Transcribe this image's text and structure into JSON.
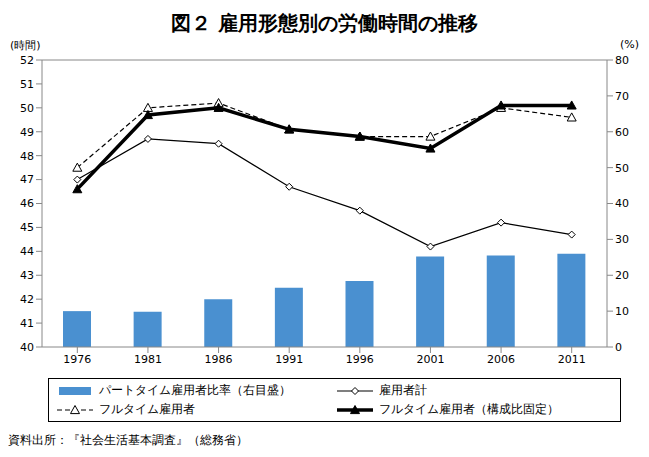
{
  "chart_data": {
    "type": "bar_line",
    "title": "図２ 雇用形態別の労働時間の推移",
    "subtitle": "資料出所：『社会生活基本調査』（総務省）",
    "y_label": "(時間)",
    "y2_label": "(%)",
    "categories": [
      "1976",
      "1981",
      "1986",
      "1991",
      "1996",
      "2001",
      "2006",
      "2011"
    ],
    "ylim": [
      40,
      52
    ],
    "yticks": [
      40,
      41,
      42,
      43,
      44,
      45,
      46,
      47,
      48,
      49,
      50,
      51,
      52
    ],
    "y2lim": [
      0,
      80
    ],
    "y2ticks": [
      0,
      10,
      20,
      30,
      40,
      50,
      60,
      70,
      80
    ],
    "grid": false,
    "legend": "bottom",
    "series": [
      {
        "name": "パートタイム雇用者比率（右目盛）",
        "type": "bar",
        "axis": "y2",
        "color": "#4a90d0",
        "values": [
          10.0,
          9.8,
          13.3,
          16.5,
          18.4,
          25.2,
          25.5,
          26.0
        ]
      },
      {
        "name": "雇用者計",
        "type": "line",
        "color": "#000000",
        "marker": "diamond_open",
        "line_style": "solid",
        "values": [
          47.0,
          48.7,
          48.5,
          46.7,
          45.7,
          44.2,
          45.2,
          44.7
        ]
      },
      {
        "name": "フルタイム雇用者",
        "type": "line",
        "color": "#000000",
        "marker": "triangle_open",
        "line_style": "dashed",
        "values": [
          47.5,
          50.0,
          50.2,
          49.1,
          48.8,
          48.8,
          50.0,
          49.6
        ]
      },
      {
        "name": "フルタイム雇用者（構成比固定）",
        "type": "line",
        "color": "#000000",
        "marker": "triangle",
        "line_style": "thick",
        "values": [
          46.6,
          49.7,
          50.0,
          49.1,
          48.8,
          48.3,
          50.1,
          50.1
        ]
      }
    ]
  }
}
